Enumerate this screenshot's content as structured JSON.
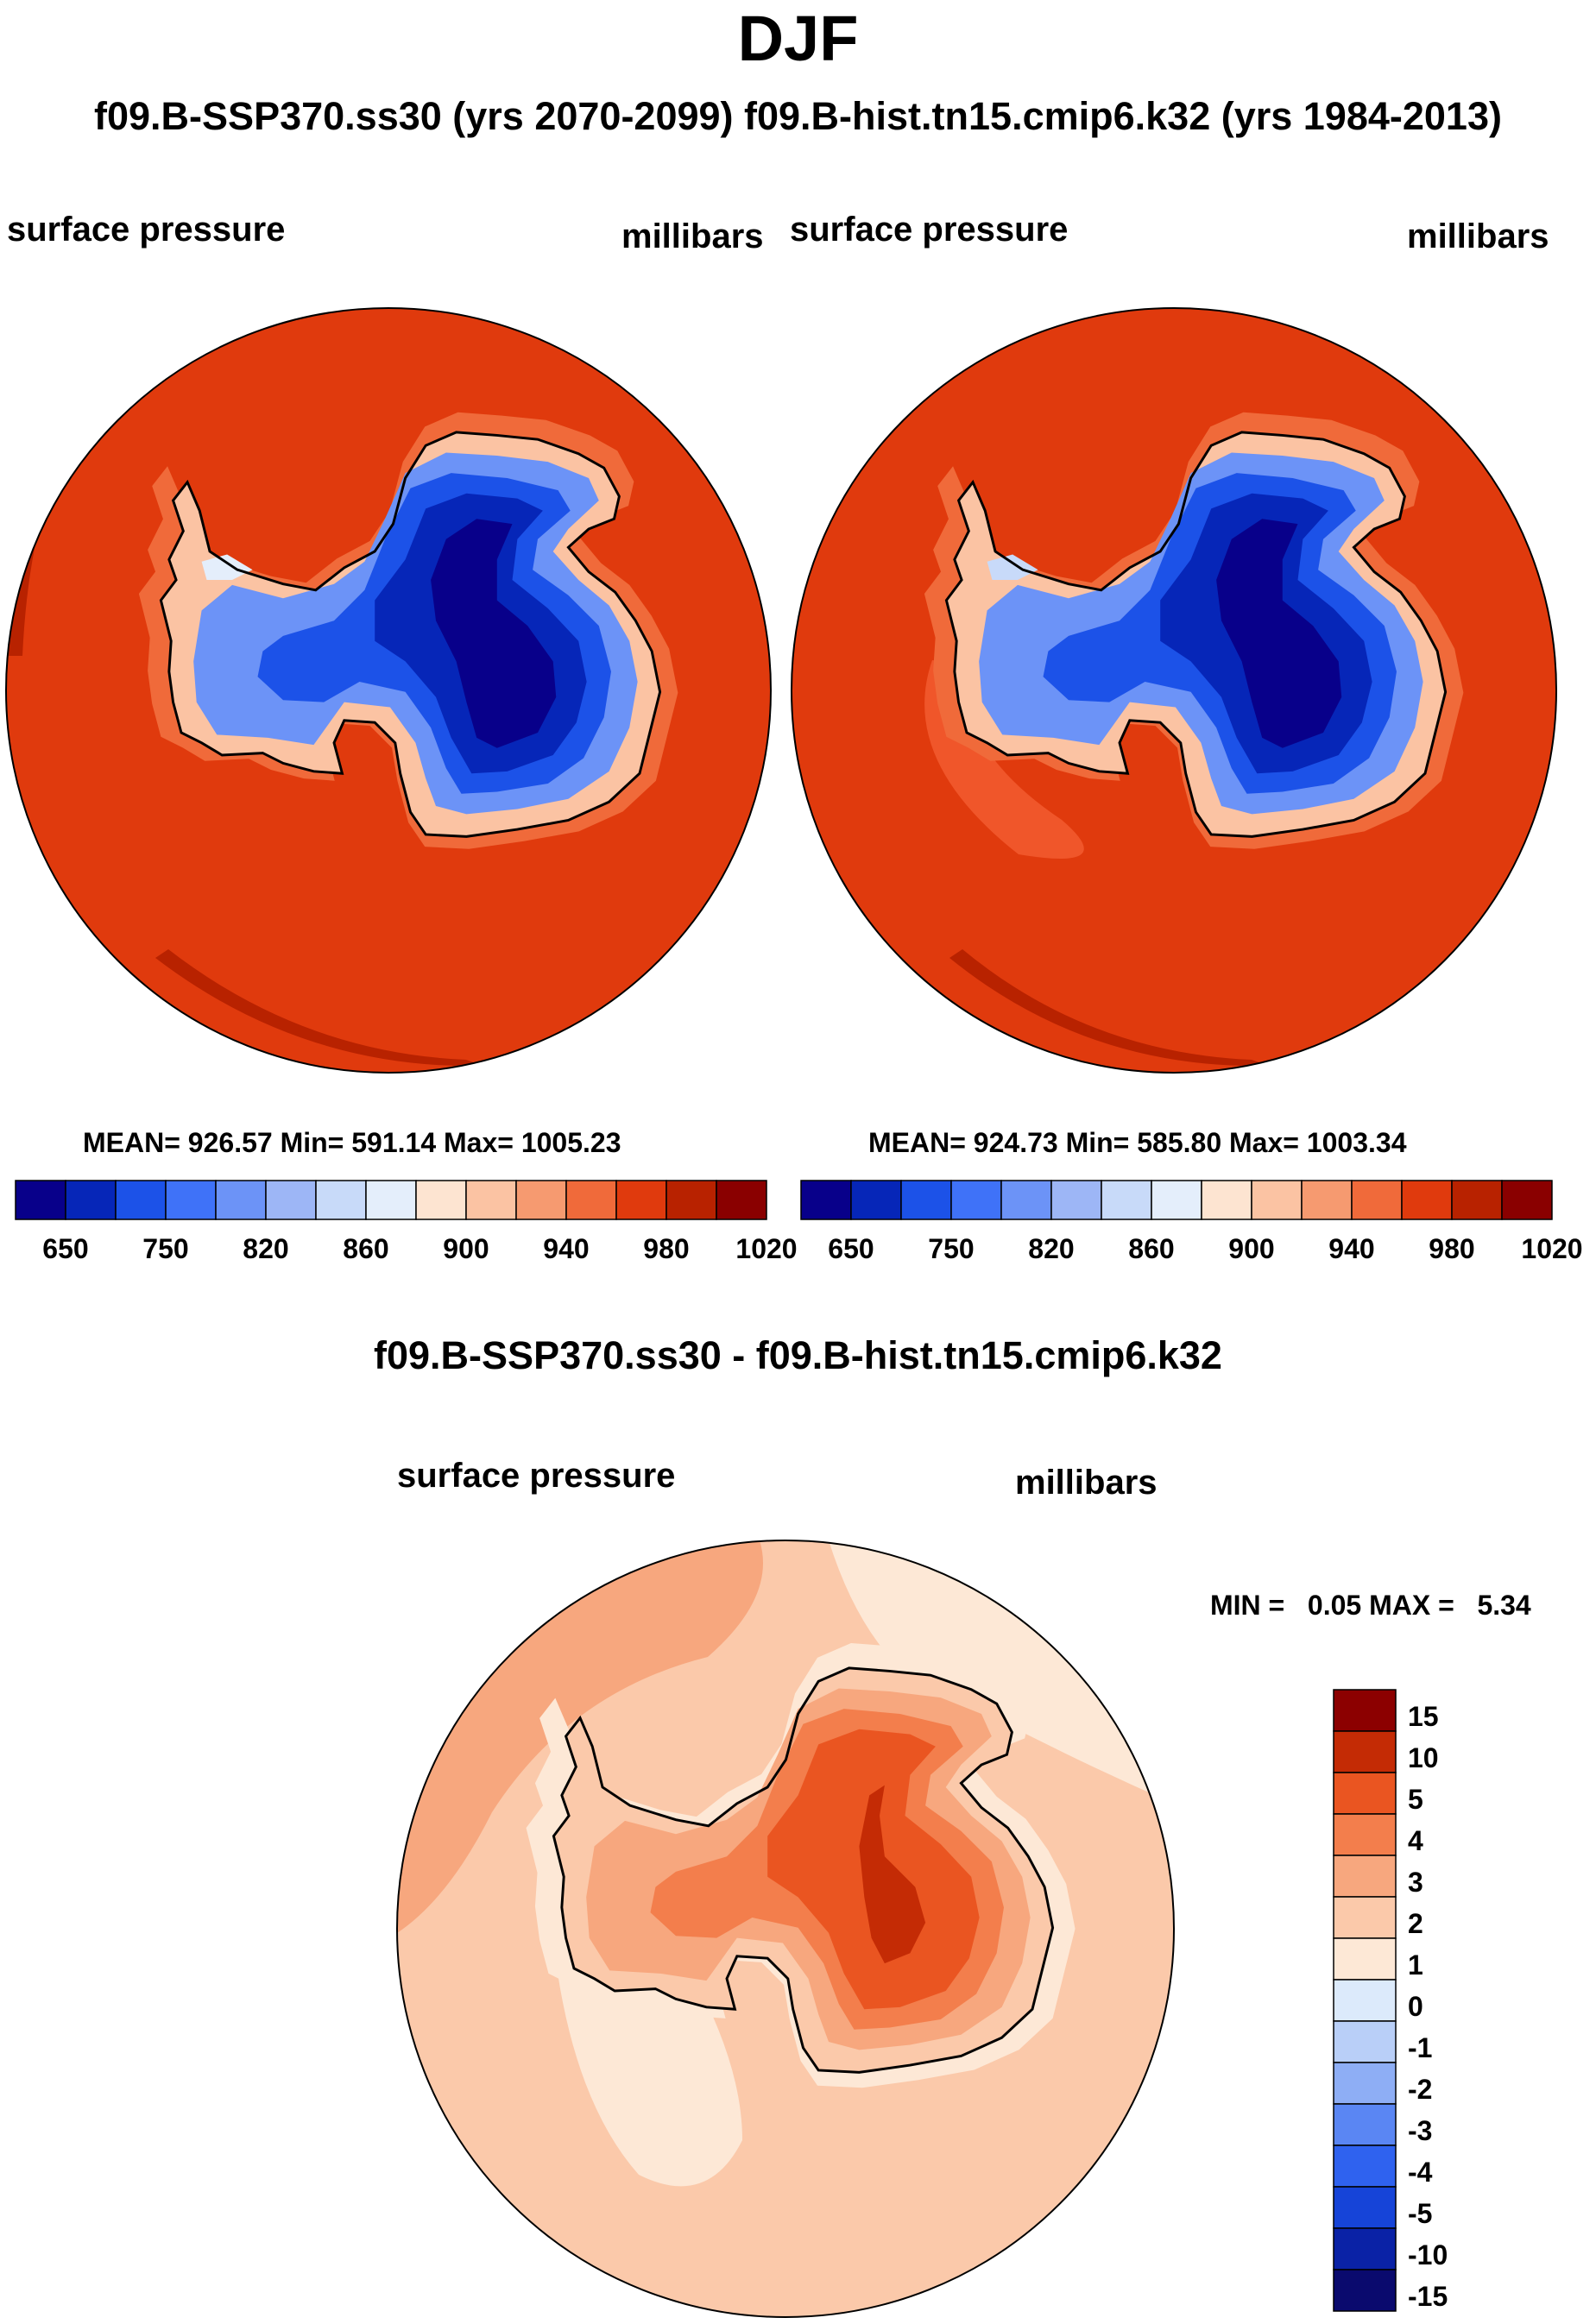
{
  "page_title": "DJF",
  "run_labels": "f09.B-SSP370.ss30 (yrs 2070-2099)  f09.B-hist.tn15.cmip6.k32 (yrs 1984-2013)",
  "panel_left": {
    "variable": "surface pressure",
    "units": "millibars",
    "stats": "MEAN= 926.57  Min= 591.14  Max= 1005.23"
  },
  "panel_right": {
    "variable": "surface pressure",
    "units": "millibars",
    "stats": "MEAN= 924.73  Min= 585.80  Max= 1003.34"
  },
  "panel_diff": {
    "title": "f09.B-SSP370.ss30 - f09.B-hist.tn15.cmip6.k32",
    "variable": "surface pressure",
    "units": "millibars",
    "minmax": "MIN =   0.05 MAX =   5.34"
  },
  "colors": {
    "abs_scale": [
      "#08008a",
      "#0626b8",
      "#1c52e8",
      "#3f72f8",
      "#6c93f7",
      "#9db6f6",
      "#c8daf9",
      "#e4eefb",
      "#fde4d1",
      "#fbc3a3",
      "#f69a70",
      "#f06a3a",
      "#e03a0d",
      "#b82200",
      "#8a0000"
    ],
    "diff_scale": [
      "#0a0a6e",
      "#0a22a6",
      "#1644d8",
      "#2f62ef",
      "#5a86f3",
      "#8eaef5",
      "#b9cff8",
      "#dceafb",
      "#fde8d6",
      "#fbc9aa",
      "#f7a77e",
      "#f37e4c",
      "#ea5521",
      "#c42b05",
      "#8c0000"
    ],
    "ocean_fill": "#e03a0d",
    "coast": "#000000"
  },
  "chart_data": [
    {
      "type": "heatmap",
      "title": "surface pressure",
      "units": "millibars",
      "projection": "south polar stereographic",
      "colorbar_levels": [
        "650",
        "750",
        "820",
        "860",
        "900",
        "940",
        "980",
        "1020"
      ],
      "mean": 926.57,
      "min": 591.14,
      "max": 1005.23
    },
    {
      "type": "heatmap",
      "title": "surface pressure",
      "units": "millibars",
      "projection": "south polar stereographic",
      "colorbar_levels": [
        "650",
        "750",
        "820",
        "860",
        "900",
        "940",
        "980",
        "1020"
      ],
      "mean": 924.73,
      "min": 585.8,
      "max": 1003.34
    },
    {
      "type": "heatmap",
      "title": "f09.B-SSP370.ss30 - f09.B-hist.tn15.cmip6.k32",
      "units": "millibars",
      "projection": "south polar stereographic",
      "colorbar_levels": [
        "15",
        "10",
        "5",
        "4",
        "3",
        "2",
        "1",
        "0",
        "-1",
        "-2",
        "-3",
        "-4",
        "-5",
        "-10",
        "-15"
      ],
      "min": 0.05,
      "max": 5.34
    }
  ]
}
